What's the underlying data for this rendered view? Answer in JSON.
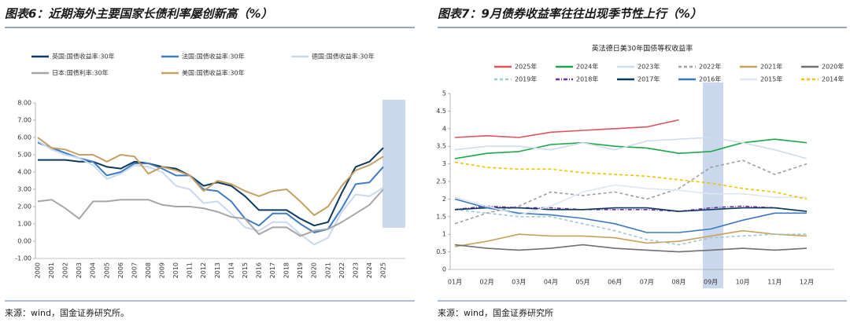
{
  "chart_data": [
    {
      "type": "line",
      "title": "图表6：近期海外主要国家长债利率屡创新高（%）",
      "source": "来源：wind，国金证券研究所。",
      "categories": [
        "2000",
        "2001",
        "2002",
        "2003",
        "2004",
        "2005",
        "2006",
        "2007",
        "2008",
        "2009",
        "2010",
        "2011",
        "2012",
        "2013",
        "2014",
        "2015",
        "2016",
        "2017",
        "2018",
        "2019",
        "2020",
        "2021",
        "2022",
        "2023",
        "2024",
        "2025"
      ],
      "ylim": [
        -1,
        8
      ],
      "yticks": [
        {
          "value": -1,
          "label": "-1.00"
        },
        {
          "value": 0,
          "label": "0.00"
        },
        {
          "value": 1,
          "label": "1.00"
        },
        {
          "value": 2,
          "label": "2.00"
        },
        {
          "value": 3,
          "label": "3.00"
        },
        {
          "value": 4,
          "label": "4.00"
        },
        {
          "value": 5,
          "label": "5.00"
        },
        {
          "value": 6,
          "label": "6.00"
        },
        {
          "value": 7,
          "label": "7.00"
        },
        {
          "value": 8,
          "label": "8.00"
        }
      ],
      "series": [
        {
          "name": "英国:国债收益率:30年",
          "color": "#0d3a5c",
          "style": "solid",
          "values": [
            4.7,
            4.7,
            4.7,
            4.6,
            4.6,
            4.3,
            4.2,
            4.6,
            4.5,
            4.3,
            4.2,
            3.8,
            3.2,
            3.4,
            3.2,
            2.6,
            1.8,
            1.8,
            1.8,
            1.3,
            0.9,
            1.1,
            2.8,
            4.3,
            4.6,
            5.4
          ]
        },
        {
          "name": "法国:国债收益率:30年",
          "color": "#3f7cc4",
          "style": "solid",
          "values": [
            5.7,
            5.4,
            5.1,
            4.8,
            4.6,
            3.8,
            4.0,
            4.5,
            4.5,
            4.2,
            3.8,
            3.8,
            3.0,
            2.9,
            2.3,
            1.3,
            0.9,
            1.6,
            1.6,
            1.0,
            0.5,
            0.7,
            1.9,
            3.3,
            3.4,
            4.3
          ]
        },
        {
          "name": "德国:国债收益率:30年",
          "color": "#c9d9ee",
          "style": "solid",
          "values": [
            5.8,
            5.3,
            5.0,
            4.8,
            4.4,
            3.6,
            3.9,
            4.4,
            4.3,
            4.0,
            3.2,
            3.0,
            2.2,
            2.3,
            1.6,
            0.8,
            0.6,
            1.1,
            1.1,
            0.4,
            -0.2,
            0.2,
            1.7,
            2.7,
            2.6,
            3.1
          ]
        },
        {
          "name": "日本:国债利率:30年",
          "color": "#a6a6a6",
          "style": "solid",
          "values": [
            2.3,
            2.4,
            1.9,
            1.3,
            2.3,
            2.3,
            2.4,
            2.4,
            2.4,
            2.1,
            2.0,
            2.0,
            1.9,
            1.7,
            1.4,
            1.3,
            0.4,
            0.8,
            0.8,
            0.3,
            0.6,
            0.7,
            1.1,
            1.6,
            2.1,
            3.0
          ]
        },
        {
          "name": "美国:国债收益率:30年",
          "color": "#c4a063",
          "style": "solid",
          "values": [
            6.0,
            5.4,
            5.3,
            5.0,
            5.0,
            4.6,
            5.0,
            4.9,
            3.9,
            4.3,
            4.1,
            3.8,
            2.9,
            3.5,
            3.3,
            2.9,
            2.6,
            2.9,
            3.0,
            2.3,
            1.5,
            2.0,
            3.2,
            4.1,
            4.4,
            4.9
          ]
        }
      ]
    },
    {
      "type": "line",
      "title": "图表7：9月债券收益率往往出现季节性上行（%）",
      "subtitle": "英法德日美30年国债等权收益率",
      "source": "来源：wind，国金证券研究所",
      "categories": [
        "01月",
        "02月",
        "03月",
        "04月",
        "05月",
        "06月",
        "07月",
        "08月",
        "09月",
        "10月",
        "11月",
        "12月"
      ],
      "ylim": [
        0,
        5
      ],
      "yticks": [
        0,
        0.5,
        1,
        1.5,
        2,
        2.5,
        3,
        3.5,
        4,
        4.5,
        5
      ],
      "series": [
        {
          "name": "2025年",
          "color": "#e0525a",
          "style": "solid",
          "values": [
            3.75,
            3.8,
            3.75,
            3.9,
            3.95,
            4.0,
            4.05,
            4.25,
            null,
            null,
            null,
            null
          ]
        },
        {
          "name": "2024年",
          "color": "#1aa84a",
          "style": "solid",
          "values": [
            3.15,
            3.3,
            3.35,
            3.55,
            3.6,
            3.5,
            3.45,
            3.3,
            3.35,
            3.6,
            3.7,
            3.6
          ]
        },
        {
          "name": "2023年",
          "color": "#cfdcee",
          "style": "solid",
          "values": [
            3.4,
            3.5,
            3.5,
            3.4,
            3.6,
            3.4,
            3.65,
            3.7,
            3.75,
            3.6,
            3.4,
            3.15
          ]
        },
        {
          "name": "2022年",
          "color": "#a0a0a0",
          "style": "dashed",
          "values": [
            1.3,
            1.6,
            1.8,
            2.2,
            2.1,
            2.2,
            2.0,
            2.3,
            2.9,
            3.1,
            2.7,
            3.0
          ]
        },
        {
          "name": "2021年",
          "color": "#c8a060",
          "style": "solid",
          "values": [
            0.65,
            0.8,
            1.0,
            0.95,
            0.95,
            0.9,
            0.75,
            0.8,
            0.95,
            1.1,
            1.0,
            0.95
          ]
        },
        {
          "name": "2020年",
          "color": "#707070",
          "style": "solid",
          "values": [
            0.7,
            0.6,
            0.55,
            0.6,
            0.7,
            0.6,
            0.55,
            0.5,
            0.55,
            0.6,
            0.55,
            0.6
          ]
        },
        {
          "name": "2019年",
          "color": "#9fc8d0",
          "style": "dashed",
          "values": [
            1.7,
            1.6,
            1.5,
            1.5,
            1.3,
            1.1,
            0.85,
            0.7,
            0.9,
            0.95,
            1.0,
            1.0
          ]
        },
        {
          "name": "2018年",
          "color": "#7030a0",
          "style": "dashdot",
          "values": [
            1.7,
            1.8,
            1.75,
            1.75,
            1.7,
            1.7,
            1.7,
            1.65,
            1.75,
            1.8,
            1.75,
            1.65
          ]
        },
        {
          "name": "2017年",
          "color": "#0d3a5c",
          "style": "solid",
          "values": [
            1.7,
            1.75,
            1.75,
            1.7,
            1.7,
            1.75,
            1.75,
            1.65,
            1.7,
            1.75,
            1.75,
            1.65
          ]
        },
        {
          "name": "2016年",
          "color": "#3c78c0",
          "style": "solid",
          "values": [
            2.0,
            1.75,
            1.6,
            1.55,
            1.45,
            1.3,
            1.05,
            1.05,
            1.15,
            1.4,
            1.6,
            1.6
          ]
        },
        {
          "name": "2015年",
          "color": "#dde6f2",
          "style": "solid",
          "values": [
            2.05,
            1.8,
            1.55,
            1.8,
            2.2,
            2.4,
            2.3,
            2.25,
            2.15,
            2.15,
            2.05,
            2.05
          ]
        },
        {
          "name": "2014年",
          "color": "#f2c200",
          "style": "dashed",
          "values": [
            3.05,
            2.9,
            2.85,
            2.85,
            2.75,
            2.7,
            2.65,
            2.55,
            2.45,
            2.3,
            2.2,
            2.0
          ]
        }
      ]
    }
  ]
}
